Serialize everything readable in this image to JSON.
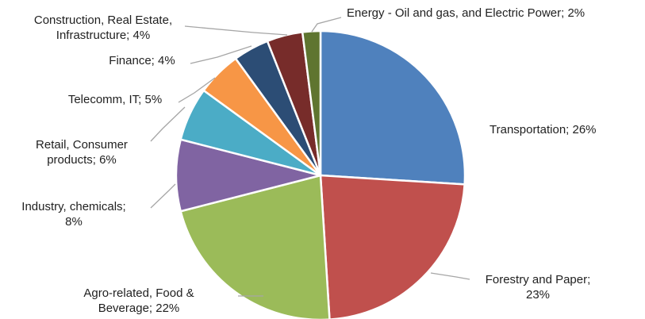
{
  "chart_data": {
    "type": "pie",
    "title": "",
    "legend": "none",
    "slices": [
      {
        "name": "Transportation",
        "value": 26,
        "color": "#4F81BD",
        "label_lines": [
          "Transportation; 26%"
        ]
      },
      {
        "name": "Forestry and Paper",
        "value": 23,
        "color": "#C0504D",
        "label_lines": [
          "Forestry and Paper;",
          "23%"
        ]
      },
      {
        "name": "Agro-related, Food & Beverage",
        "value": 22,
        "color": "#9BBB59",
        "label_lines": [
          "Agro-related, Food &",
          "Beverage; 22%"
        ]
      },
      {
        "name": "Industry, chemicals",
        "value": 8,
        "color": "#8064A2",
        "label_lines": [
          "Industry, chemicals;",
          "8%"
        ]
      },
      {
        "name": "Retail, Consumer products",
        "value": 6,
        "color": "#4BACC6",
        "label_lines": [
          "Retail, Consumer",
          "products; 6%"
        ]
      },
      {
        "name": "Telecomm, IT",
        "value": 5,
        "color": "#F79646",
        "label_lines": [
          "Telecomm, IT; 5%"
        ]
      },
      {
        "name": "Finance",
        "value": 4,
        "color": "#2C4D75",
        "label_lines": [
          "Finance; 4%"
        ]
      },
      {
        "name": "Construction, Real Estate, Infrastructure",
        "value": 4,
        "color": "#772C2A",
        "label_lines": [
          "Construction, Real Estate,",
          "Infrastructure; 4%"
        ]
      },
      {
        "name": "Energy - Oil and gas, and Electric Power",
        "value": 2,
        "color": "#5F7530",
        "label_lines": [
          "Energy - Oil and gas, and Electric Power; 2%"
        ]
      }
    ]
  }
}
